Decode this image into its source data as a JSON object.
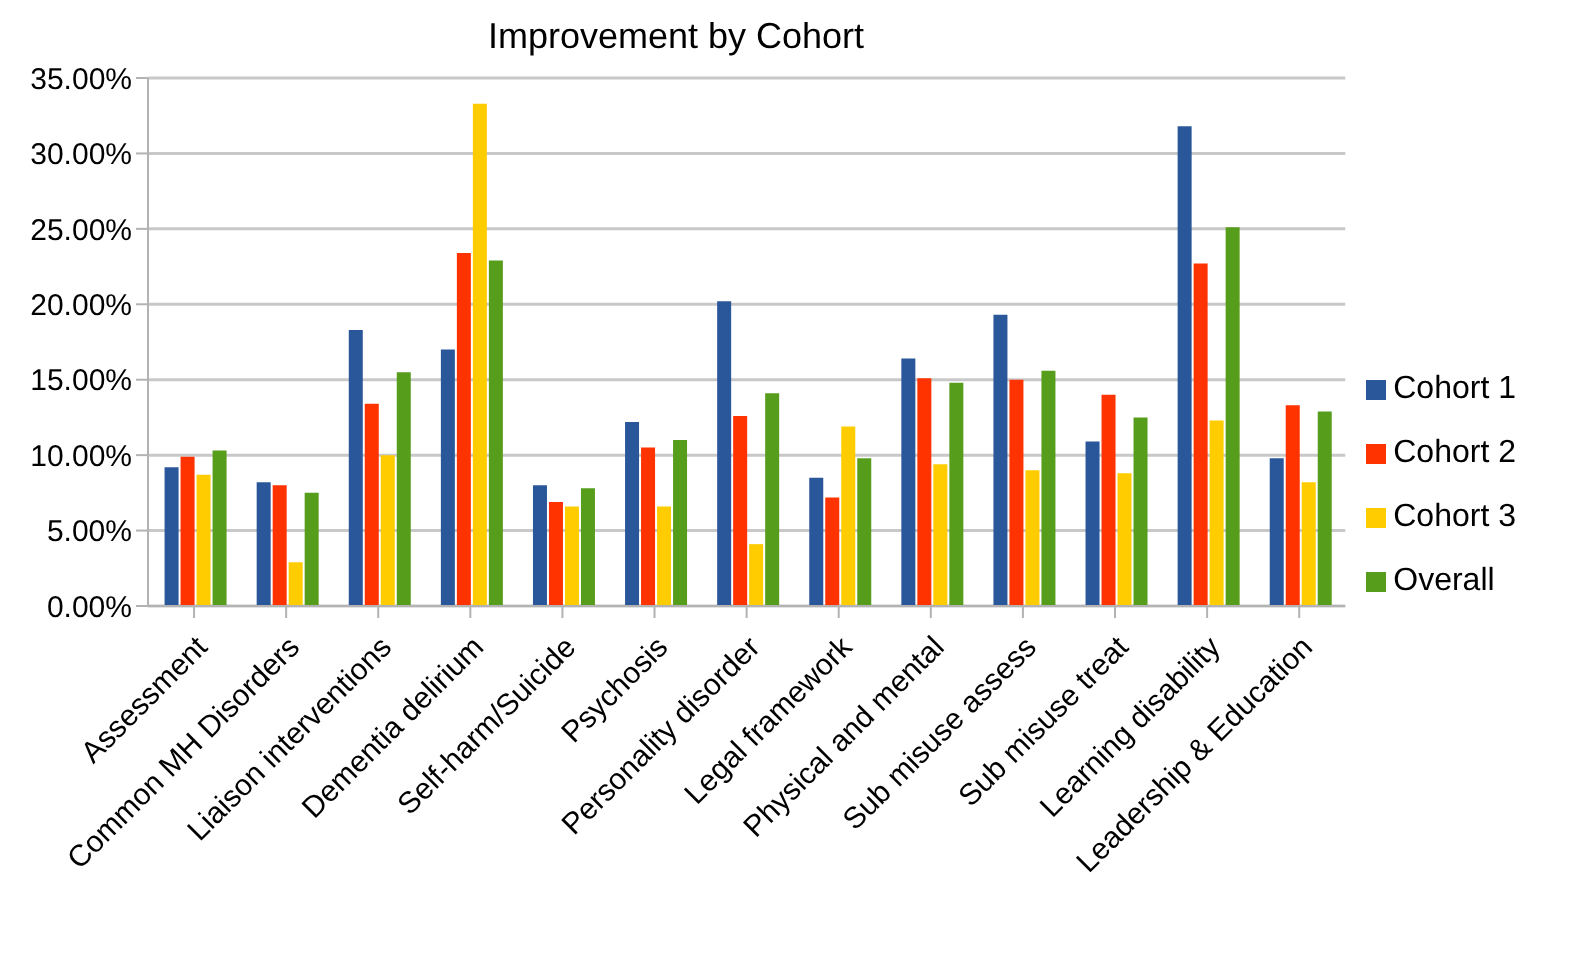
{
  "chart_data": {
    "type": "bar",
    "title": "Improvement by Cohort",
    "categories": [
      "Assessment",
      "Common MH Disorders",
      "Liaison interventions",
      "Dementia delirium",
      "Self-harm/Suicide",
      "Psychosis",
      "Personality disorder",
      "Legal framework",
      "Physical and mental",
      "Sub misuse assess",
      "Sub misuse treat",
      "Learning disability",
      "Leadership & Education"
    ],
    "series": [
      {
        "name": "Cohort 1",
        "color": "#2a579a",
        "values": [
          9.2,
          8.2,
          18.3,
          17.0,
          8.0,
          12.2,
          20.2,
          8.5,
          16.4,
          19.3,
          10.9,
          31.8,
          9.8
        ]
      },
      {
        "name": "Cohort 2",
        "color": "#ff3300",
        "values": [
          9.9,
          8.0,
          13.4,
          23.4,
          6.9,
          10.5,
          12.6,
          7.2,
          15.1,
          15.0,
          14.0,
          22.7,
          13.3
        ]
      },
      {
        "name": "Cohort 3",
        "color": "#ffcc00",
        "values": [
          8.7,
          2.9,
          10.0,
          33.3,
          6.6,
          6.6,
          4.1,
          11.9,
          9.4,
          9.0,
          8.8,
          12.3,
          8.2
        ]
      },
      {
        "name": "Overall",
        "color": "#579d1c",
        "values": [
          10.3,
          7.5,
          15.5,
          22.9,
          7.8,
          11.0,
          14.1,
          9.8,
          14.8,
          15.6,
          12.5,
          25.1,
          12.9
        ]
      }
    ],
    "ylim": [
      0,
      35
    ],
    "yticks": [
      {
        "value": 0,
        "label": "0.00%"
      },
      {
        "value": 5,
        "label": "5.00%"
      },
      {
        "value": 10,
        "label": "10.00%"
      },
      {
        "value": 15,
        "label": "15.00%"
      },
      {
        "value": 20,
        "label": "20.00%"
      },
      {
        "value": 25,
        "label": "25.00%"
      },
      {
        "value": 30,
        "label": "30.00%"
      },
      {
        "value": 35,
        "label": "35.00%"
      }
    ],
    "grid": "y",
    "legend": "right"
  }
}
